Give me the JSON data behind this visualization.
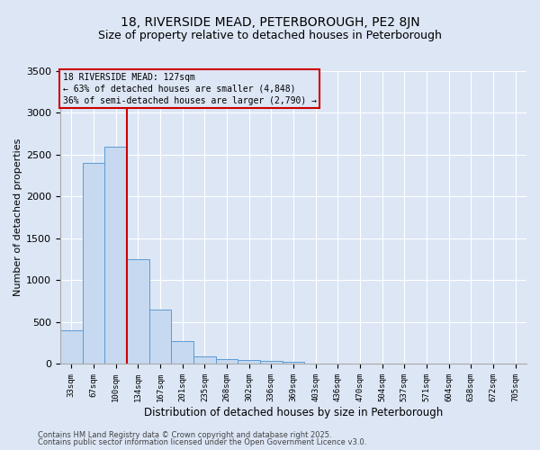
{
  "title1": "18, RIVERSIDE MEAD, PETERBOROUGH, PE2 8JN",
  "title2": "Size of property relative to detached houses in Peterborough",
  "xlabel": "Distribution of detached houses by size in Peterborough",
  "ylabel": "Number of detached properties",
  "bin_labels": [
    "33sqm",
    "67sqm",
    "100sqm",
    "134sqm",
    "167sqm",
    "201sqm",
    "235sqm",
    "268sqm",
    "302sqm",
    "336sqm",
    "369sqm",
    "403sqm",
    "436sqm",
    "470sqm",
    "504sqm",
    "537sqm",
    "571sqm",
    "604sqm",
    "638sqm",
    "672sqm",
    "705sqm"
  ],
  "bar_heights": [
    400,
    2400,
    2600,
    1250,
    650,
    270,
    90,
    55,
    50,
    40,
    30,
    0,
    0,
    0,
    0,
    0,
    0,
    0,
    0,
    0,
    0
  ],
  "bar_color": "#c6d9f0",
  "bar_edge_color": "#5b9bd5",
  "vline_color": "#cc0000",
  "ylim": [
    0,
    3500
  ],
  "yticks": [
    0,
    500,
    1000,
    1500,
    2000,
    2500,
    3000,
    3500
  ],
  "annotation_text": "18 RIVERSIDE MEAD: 127sqm\n← 63% of detached houses are smaller (4,848)\n36% of semi-detached houses are larger (2,790) →",
  "annotation_box_color": "#cc0000",
  "footnote1": "Contains HM Land Registry data © Crown copyright and database right 2025.",
  "footnote2": "Contains public sector information licensed under the Open Government Licence v3.0.",
  "bg_color": "#dce6f5",
  "grid_color": "#ffffff",
  "title_fontsize": 10,
  "subtitle_fontsize": 9,
  "vline_pos": 2.5
}
